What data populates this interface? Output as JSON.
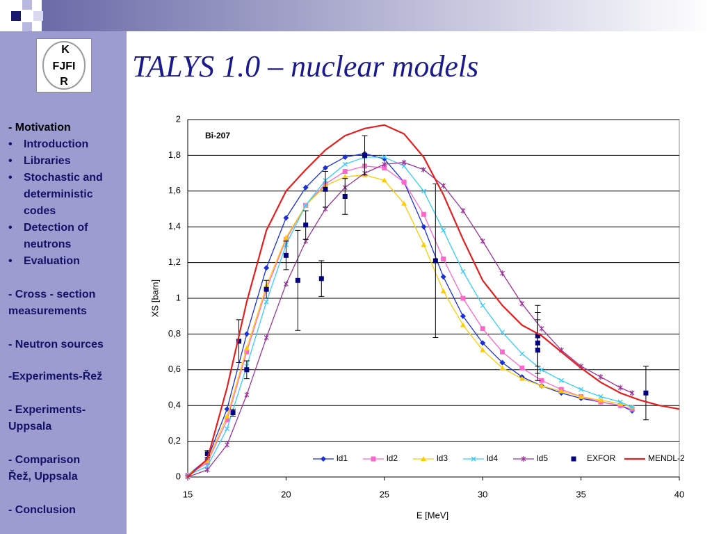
{
  "slide": {
    "title": "TALYS 1.0 – nuclear models",
    "logo": [
      "K",
      "FJFI",
      "R"
    ],
    "sidebar": [
      {
        "lines": [
          "- Motivation"
        ],
        "bullet": false
      },
      {
        "lines": [
          "Introduction"
        ],
        "bullet": true
      },
      {
        "lines": [
          "Libraries"
        ],
        "bullet": true
      },
      {
        "lines": [
          "Stochastic and",
          "deterministic",
          "codes"
        ],
        "bullet": true
      },
      {
        "lines": [
          "Detection of",
          "neutrons"
        ],
        "bullet": true
      },
      {
        "lines": [
          "Evaluation"
        ],
        "bullet": true
      },
      {
        "lines": [
          "- Cross - section",
          "measurements"
        ],
        "bullet": false
      },
      {
        "lines": [
          "- Neutron sources"
        ],
        "bullet": false
      },
      {
        "lines": [
          "-Experiments-Řež"
        ],
        "bullet": false
      },
      {
        "lines": [
          "- Experiments-",
          "Uppsala"
        ],
        "bullet": false
      },
      {
        "lines": [
          "- Comparison",
          "Řež, Uppsala"
        ],
        "bullet": false
      },
      {
        "lines": [
          "- Conclusion"
        ],
        "bullet": false
      }
    ]
  },
  "chart_data": {
    "type": "line",
    "annotation": "Bi-207",
    "xlabel": "E [MeV]",
    "ylabel": "XS [barn]",
    "xlim": [
      15,
      40
    ],
    "xticks": [
      15,
      20,
      25,
      30,
      35,
      40
    ],
    "ylim": [
      0,
      2
    ],
    "yticks": [
      0,
      {
        "value": 0.2,
        "label": "0,2"
      },
      {
        "value": 0.4,
        "label": "0,4"
      },
      {
        "value": 0.6,
        "label": "0,6"
      },
      {
        "value": 0.8,
        "label": "0,8"
      },
      1,
      {
        "value": 1.2,
        "label": "1,2"
      },
      {
        "value": 1.4,
        "label": "1,4"
      },
      {
        "value": 1.6,
        "label": "1,6"
      },
      {
        "value": 1.8,
        "label": "1,8"
      },
      2
    ],
    "grid": true,
    "legend": "bottom-right",
    "series": [
      {
        "name": "ld1",
        "color": "#1a2fd6",
        "marker": "diamond",
        "x": [
          15,
          16,
          17,
          18,
          19,
          20,
          21,
          22,
          23,
          24,
          25,
          26,
          27,
          28,
          29,
          30,
          31,
          32,
          33,
          34,
          35,
          36,
          37,
          37.6
        ],
        "values": [
          0.01,
          0.1,
          0.38,
          0.8,
          1.17,
          1.45,
          1.62,
          1.73,
          1.79,
          1.81,
          1.78,
          1.65,
          1.4,
          1.12,
          0.9,
          0.75,
          0.64,
          0.56,
          0.51,
          0.47,
          0.44,
          0.42,
          0.4,
          0.37
        ]
      },
      {
        "name": "ld2",
        "color": "#ff66cc",
        "marker": "square",
        "x": [
          15,
          16,
          17,
          18,
          19,
          20,
          21,
          22,
          23,
          24,
          25,
          26,
          27,
          28,
          29,
          30,
          31,
          32,
          33,
          34,
          35,
          36,
          37,
          37.6
        ],
        "values": [
          0.01,
          0.08,
          0.32,
          0.7,
          1.05,
          1.33,
          1.52,
          1.64,
          1.71,
          1.74,
          1.73,
          1.65,
          1.47,
          1.22,
          1.0,
          0.83,
          0.7,
          0.61,
          0.54,
          0.49,
          0.45,
          0.42,
          0.4,
          0.38
        ]
      },
      {
        "name": "ld3",
        "color": "#ffcc00",
        "marker": "triangle",
        "x": [
          15,
          16,
          17,
          18,
          19,
          20,
          21,
          22,
          23,
          24,
          25,
          26,
          27,
          28,
          29,
          30,
          31,
          32,
          33,
          34,
          35,
          36,
          37,
          37.6
        ],
        "values": [
          0.01,
          0.09,
          0.34,
          0.72,
          1.07,
          1.34,
          1.52,
          1.63,
          1.68,
          1.69,
          1.66,
          1.53,
          1.3,
          1.04,
          0.85,
          0.71,
          0.61,
          0.55,
          0.51,
          0.48,
          0.45,
          0.43,
          0.41,
          0.39
        ]
      },
      {
        "name": "ld4",
        "color": "#33ccff",
        "marker": "x",
        "x": [
          15,
          16,
          17,
          18,
          19,
          20,
          21,
          22,
          23,
          24,
          25,
          26,
          27,
          28,
          29,
          30,
          31,
          32,
          33,
          34,
          35,
          36,
          37,
          37.6
        ],
        "values": [
          0.01,
          0.06,
          0.27,
          0.62,
          0.98,
          1.3,
          1.52,
          1.66,
          1.75,
          1.79,
          1.79,
          1.74,
          1.6,
          1.38,
          1.15,
          0.96,
          0.81,
          0.69,
          0.6,
          0.54,
          0.49,
          0.45,
          0.42,
          0.39
        ]
      },
      {
        "name": "ld5",
        "color": "#993399",
        "marker": "star",
        "x": [
          15,
          16,
          17,
          18,
          19,
          20,
          21,
          22,
          23,
          24,
          25,
          26,
          27,
          28,
          29,
          30,
          31,
          32,
          33,
          34,
          35,
          36,
          37,
          37.6
        ],
        "values": [
          0.0,
          0.04,
          0.18,
          0.46,
          0.78,
          1.08,
          1.32,
          1.5,
          1.62,
          1.7,
          1.75,
          1.76,
          1.72,
          1.63,
          1.49,
          1.32,
          1.14,
          0.97,
          0.83,
          0.71,
          0.62,
          0.56,
          0.5,
          0.47
        ]
      },
      {
        "name": "EXFOR",
        "color": "#000080",
        "marker": "square",
        "line": false,
        "x": [
          16,
          17.3,
          17.6,
          18,
          19,
          20,
          20.6,
          21,
          21.8,
          22,
          23,
          24,
          27.6,
          32.8,
          32.8,
          32.8,
          38.3
        ],
        "values": [
          0.13,
          0.36,
          0.76,
          0.6,
          1.05,
          1.24,
          1.1,
          1.41,
          1.11,
          1.61,
          1.57,
          1.8,
          1.21,
          0.79,
          0.75,
          0.71,
          0.47
        ],
        "errors": [
          0.02,
          0.02,
          0.12,
          0.05,
          0.05,
          0.08,
          0.28,
          0.08,
          0.1,
          0.1,
          0.1,
          0.11,
          0.43,
          0.17,
          0.17,
          0.17,
          0.15
        ]
      },
      {
        "name": "MENDL-2",
        "color": "#e41e1e",
        "marker": "none",
        "x": [
          15,
          16,
          17,
          18,
          19,
          20,
          21,
          22,
          23,
          24,
          25,
          26,
          27,
          28,
          29,
          30,
          31,
          32,
          33,
          34,
          35,
          36,
          37,
          38,
          39,
          40
        ],
        "values": [
          0.0,
          0.1,
          0.5,
          0.98,
          1.38,
          1.6,
          1.72,
          1.83,
          1.91,
          1.95,
          1.97,
          1.92,
          1.79,
          1.58,
          1.33,
          1.1,
          0.96,
          0.85,
          0.79,
          0.7,
          0.61,
          0.53,
          0.47,
          0.43,
          0.4,
          0.38
        ]
      }
    ]
  }
}
